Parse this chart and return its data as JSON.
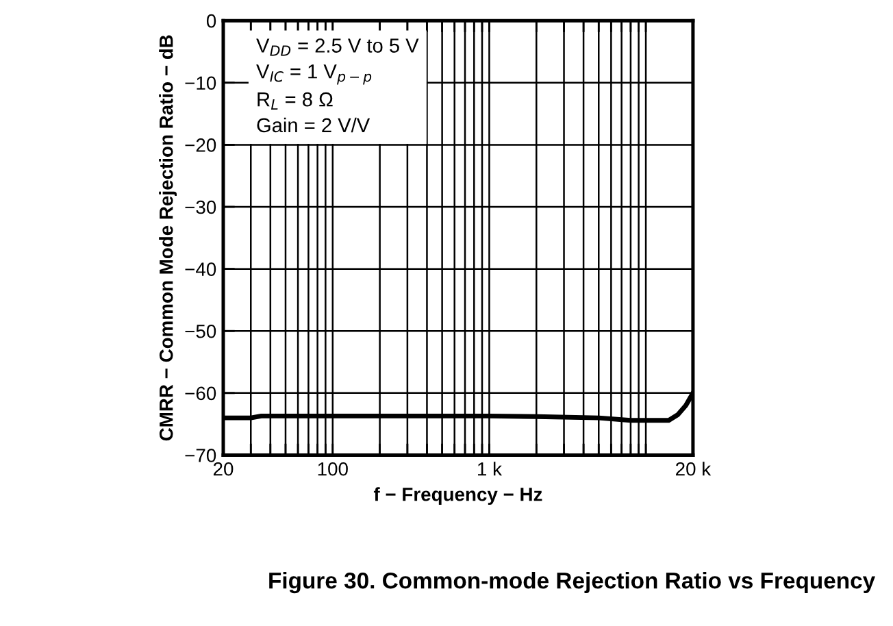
{
  "chart_data": {
    "type": "line",
    "title": "Figure 30. Common-mode Rejection Ratio vs Frequency",
    "xlabel": "f − Frequency − Hz",
    "ylabel": "CMRR − Common Mode Rejection Ratio − dB",
    "annotations": [
      "V$_{DD}$ = 2.5 V to 5 V",
      "V$_{IC}$ = 1 V$_{p−p}$",
      "R$_{L}$ = 8 Ω",
      "Gain = 2 V/V"
    ],
    "x": [
      20,
      30,
      35,
      100,
      1000,
      2000,
      5000,
      8000,
      14000,
      16000,
      18000,
      20000
    ],
    "series": [
      {
        "color": "#000000",
        "values": [
          -64,
          -64,
          -63.7,
          -63.7,
          -63.7,
          -63.8,
          -64,
          -64.4,
          -64.4,
          -63.5,
          -62,
          -60
        ]
      }
    ],
    "log": "x",
    "xlim": [
      20,
      20000
    ],
    "ylim": [
      -70,
      0
    ],
    "xticks": [
      20,
      {
        "value": 30,
        "label": null
      },
      {
        "value": 40,
        "label": null
      },
      {
        "value": 50,
        "label": null
      },
      {
        "value": 60,
        "label": null
      },
      {
        "value": 70,
        "label": null
      },
      {
        "value": 80,
        "label": null
      },
      {
        "value": 90,
        "label": null
      },
      100,
      {
        "value": 200,
        "label": null
      },
      {
        "value": 300,
        "label": null
      },
      {
        "value": 400,
        "label": null
      },
      {
        "value": 500,
        "label": null
      },
      {
        "value": 600,
        "label": null
      },
      {
        "value": 700,
        "label": null
      },
      {
        "value": 800,
        "label": null
      },
      {
        "value": 900,
        "label": null
      },
      {
        "value": 1000,
        "label": "1 k"
      },
      {
        "value": 2000,
        "label": null
      },
      {
        "value": 3000,
        "label": null
      },
      {
        "value": 4000,
        "label": null
      },
      {
        "value": 5000,
        "label": null
      },
      {
        "value": 6000,
        "label": null
      },
      {
        "value": 7000,
        "label": null
      },
      {
        "value": 8000,
        "label": null
      },
      {
        "value": 9000,
        "label": null
      },
      {
        "value": 10000,
        "label": null
      },
      {
        "value": 20000,
        "label": "20 k"
      }
    ],
    "yticks": [
      -70,
      -60,
      -50,
      -40,
      -30,
      -20,
      -10,
      0
    ],
    "grid": true,
    "legend": false,
    "line_style": "solid",
    "marker": "none"
  }
}
